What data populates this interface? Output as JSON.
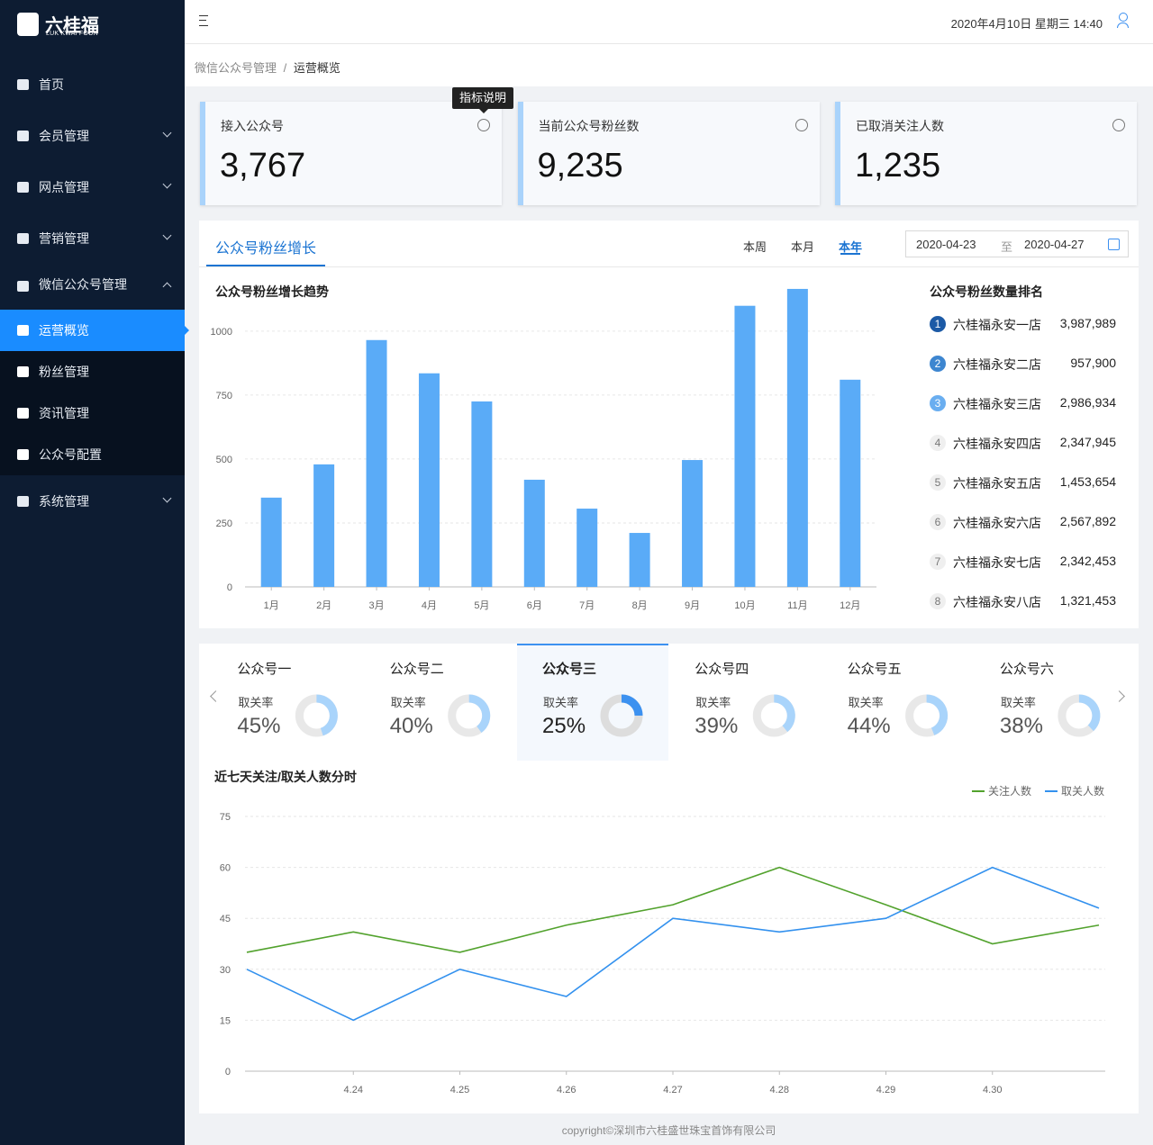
{
  "sidebar": {
    "logo": "六桂福",
    "logo_sub": "LUK KWAI FOOK",
    "menu": [
      {
        "label": "首页"
      },
      {
        "label": "会员管理",
        "expandable": true
      },
      {
        "label": "网点管理",
        "expandable": true
      },
      {
        "label": "营销管理",
        "expandable": true
      },
      {
        "label": "微信公众号管理",
        "expandable": true,
        "children": [
          {
            "label": "运营概览",
            "active": true
          },
          {
            "label": "粉丝管理"
          },
          {
            "label": "资讯管理"
          },
          {
            "label": "公众号配置"
          }
        ]
      },
      {
        "label": "系统管理",
        "expandable": true
      }
    ]
  },
  "header": {
    "datetime": "2020年4月10日 星期三 14:40"
  },
  "breadcrumb": {
    "items": [
      "微信公众号管理",
      "运营概览"
    ],
    "separator": "/"
  },
  "tooltip": "指标说明",
  "stats": [
    {
      "label": "接入公众号",
      "value": "3,767"
    },
    {
      "label": "当前公众号粉丝数",
      "value": "9,235"
    },
    {
      "label": "已取消关注人数",
      "value": "1,235"
    }
  ],
  "growth_panel": {
    "tab": "公众号粉丝增长",
    "periods": [
      "本周",
      "本月",
      "本年"
    ],
    "active_period": 2,
    "date_from": "2020-04-23",
    "date_sep": "至",
    "date_to": "2020-04-27"
  },
  "ranking": {
    "title": "公众号粉丝数量排名",
    "items": [
      {
        "rank": 1,
        "name": "六桂福永安一店",
        "value": "3,987,989"
      },
      {
        "rank": 2,
        "name": "六桂福永安二店",
        "value": "957,900"
      },
      {
        "rank": 3,
        "name": "六桂福永安三店",
        "value": "2,986,934"
      },
      {
        "rank": 4,
        "name": "六桂福永安四店",
        "value": "2,347,945"
      },
      {
        "rank": 5,
        "name": "六桂福永安五店",
        "value": "1,453,654"
      },
      {
        "rank": 6,
        "name": "六桂福永安六店",
        "value": "2,567,892"
      },
      {
        "rank": 7,
        "name": "六桂福永安七店",
        "value": "2,342,453"
      },
      {
        "rank": 8,
        "name": "六桂福永安八店",
        "value": "1,321,453"
      }
    ]
  },
  "accounts": {
    "active": 2,
    "items": [
      {
        "name": "公众号一",
        "metric": "取关率",
        "value": 45,
        "value_label": "45%"
      },
      {
        "name": "公众号二",
        "metric": "取关率",
        "value": 40,
        "value_label": "40%"
      },
      {
        "name": "公众号三",
        "metric": "取关率",
        "value": 25,
        "value_label": "25%"
      },
      {
        "name": "公众号四",
        "metric": "取关率",
        "value": 39,
        "value_label": "39%"
      },
      {
        "name": "公众号五",
        "metric": "取关率",
        "value": 44,
        "value_label": "44%"
      },
      {
        "name": "公众号六",
        "metric": "取关率",
        "value": 38,
        "value_label": "38%"
      }
    ]
  },
  "chart_data": [
    {
      "type": "bar",
      "title": "公众号粉丝增长趋势",
      "categories": [
        "1月",
        "2月",
        "3月",
        "4月",
        "5月",
        "6月",
        "7月",
        "8月",
        "9月",
        "10月",
        "11月",
        "12月"
      ],
      "values": [
        349,
        479,
        965,
        835,
        725,
        419,
        306,
        211,
        496,
        1099,
        1165,
        810
      ],
      "color": "#5aabf7",
      "ylim": [
        0,
        1200
      ],
      "yticks": [
        0,
        250,
        500,
        750,
        1000
      ],
      "grid": true
    },
    {
      "type": "line",
      "title": "近七天关注/取关人数分时",
      "categories": [
        null,
        "4.24",
        "4.25",
        "4.26",
        "4.27",
        "4.28",
        "4.29",
        "4.30",
        null
      ],
      "series": [
        {
          "name": "关注人数",
          "color": "#52a22d",
          "values": [
            35,
            41,
            35,
            43,
            49,
            60,
            49,
            37.5,
            43
          ]
        },
        {
          "name": "取关人数",
          "color": "#3391ee",
          "values": [
            30,
            15,
            30,
            22,
            45,
            41,
            45,
            60,
            48
          ]
        }
      ],
      "ylim": [
        0,
        75
      ],
      "yticks": [
        0,
        15,
        30,
        45,
        60,
        75
      ],
      "grid": true,
      "legend": "top-right"
    }
  ],
  "footer": "copyright©深圳市六桂盛世珠宝首饰有限公司"
}
